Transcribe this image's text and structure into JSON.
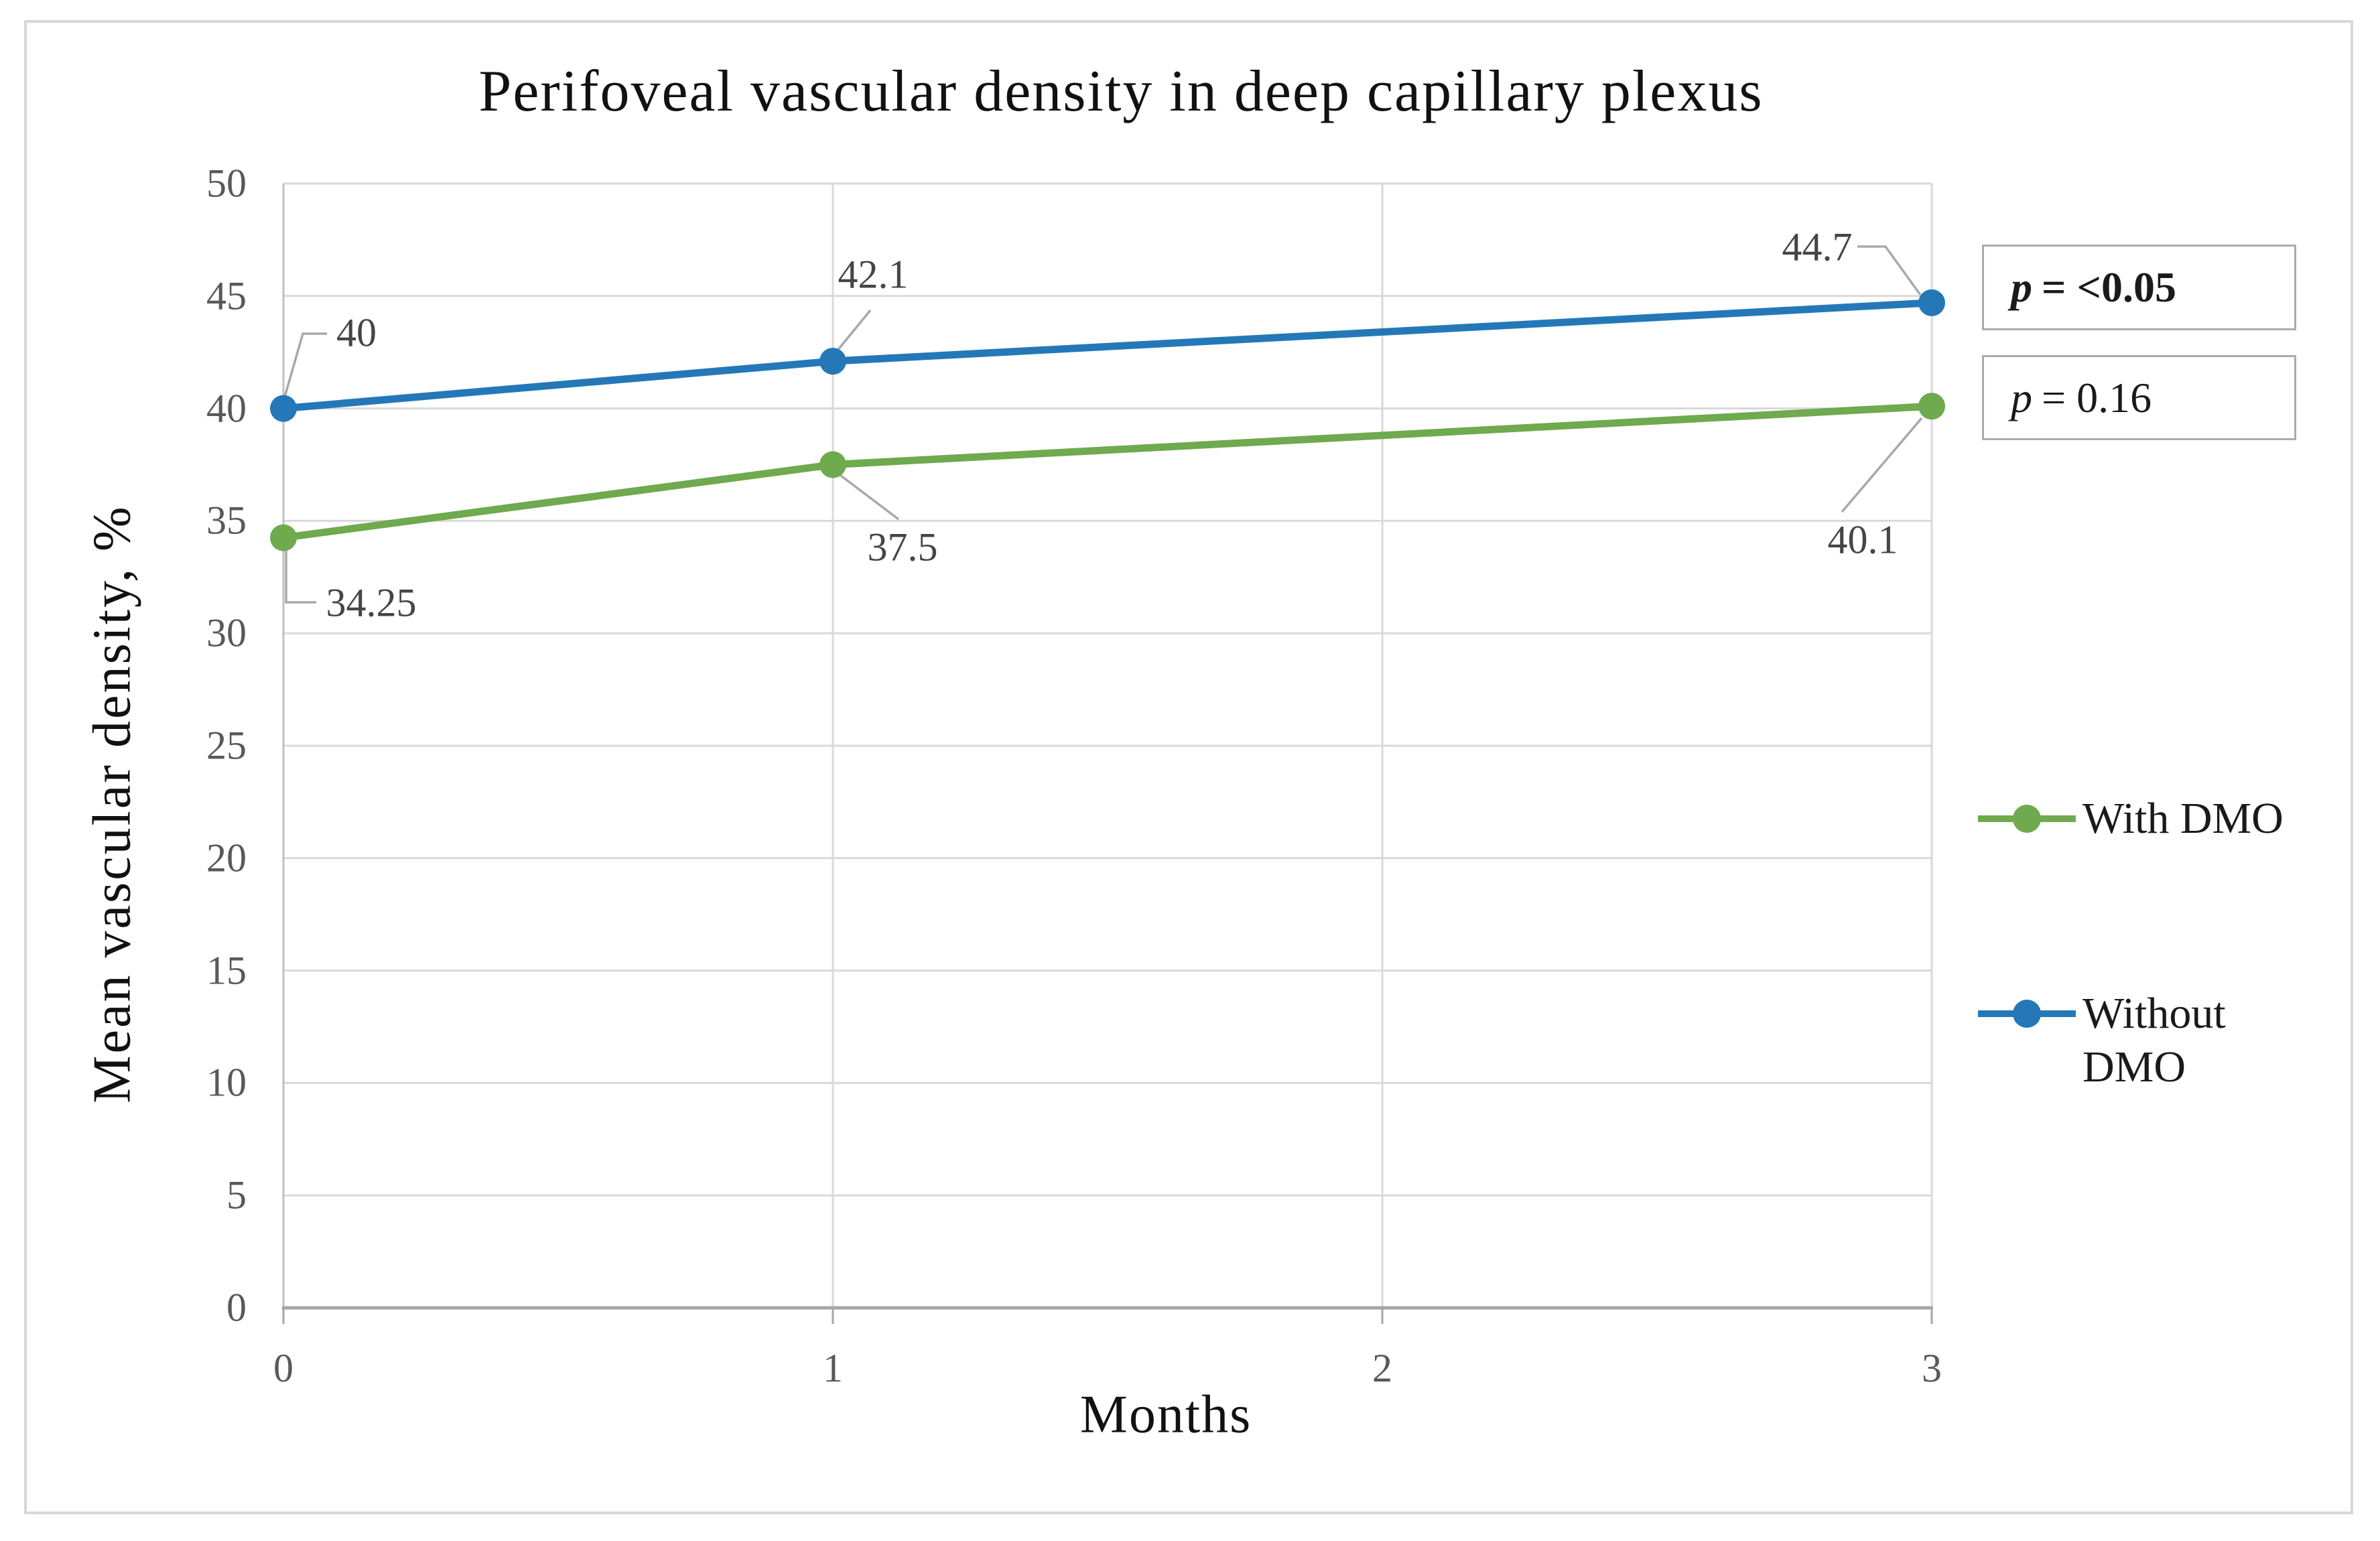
{
  "chart_data": {
    "type": "line",
    "title": "Perifoveal vascular density in deep capillary plexus",
    "xlabel": "Months",
    "ylabel": "Mean vascular density, %",
    "xlim": [
      0,
      3
    ],
    "ylim": [
      0,
      50
    ],
    "xticks": [
      "0",
      "1",
      "2",
      "3"
    ],
    "yticks": [
      "0",
      "5",
      "10",
      "15",
      "20",
      "25",
      "30",
      "35",
      "40",
      "45",
      "50"
    ],
    "grid": true,
    "legend_position": "right",
    "series": [
      {
        "name": "With DMO",
        "color": "#6faa4e",
        "x": [
          0,
          1,
          3
        ],
        "values": [
          34.25,
          37.5,
          40.1
        ],
        "point_labels": [
          "34.25",
          "37.5",
          "40.1"
        ],
        "p_value": "p = 0.16"
      },
      {
        "name": "Without DMO",
        "color": "#2478b8",
        "x": [
          0,
          1,
          3
        ],
        "values": [
          40,
          42.1,
          44.7
        ],
        "point_labels": [
          "40",
          "42.1",
          "44.7"
        ],
        "p_value": "p = <0.05"
      }
    ],
    "annotations": [
      {
        "p_symbol": "p",
        "value": "= <0.05",
        "bold": true
      },
      {
        "p_symbol": "p",
        "value": "= 0.16",
        "bold": false
      }
    ]
  },
  "colors": {
    "gridline": "#d9d9d9",
    "y_axis_line": "#c0c0c0",
    "x_axis_line": "#a6a6a6",
    "leader_line": "#a9a9a9",
    "tick_text": "#595959",
    "data_label_text": "#454545",
    "border": "#d8d8d8"
  }
}
